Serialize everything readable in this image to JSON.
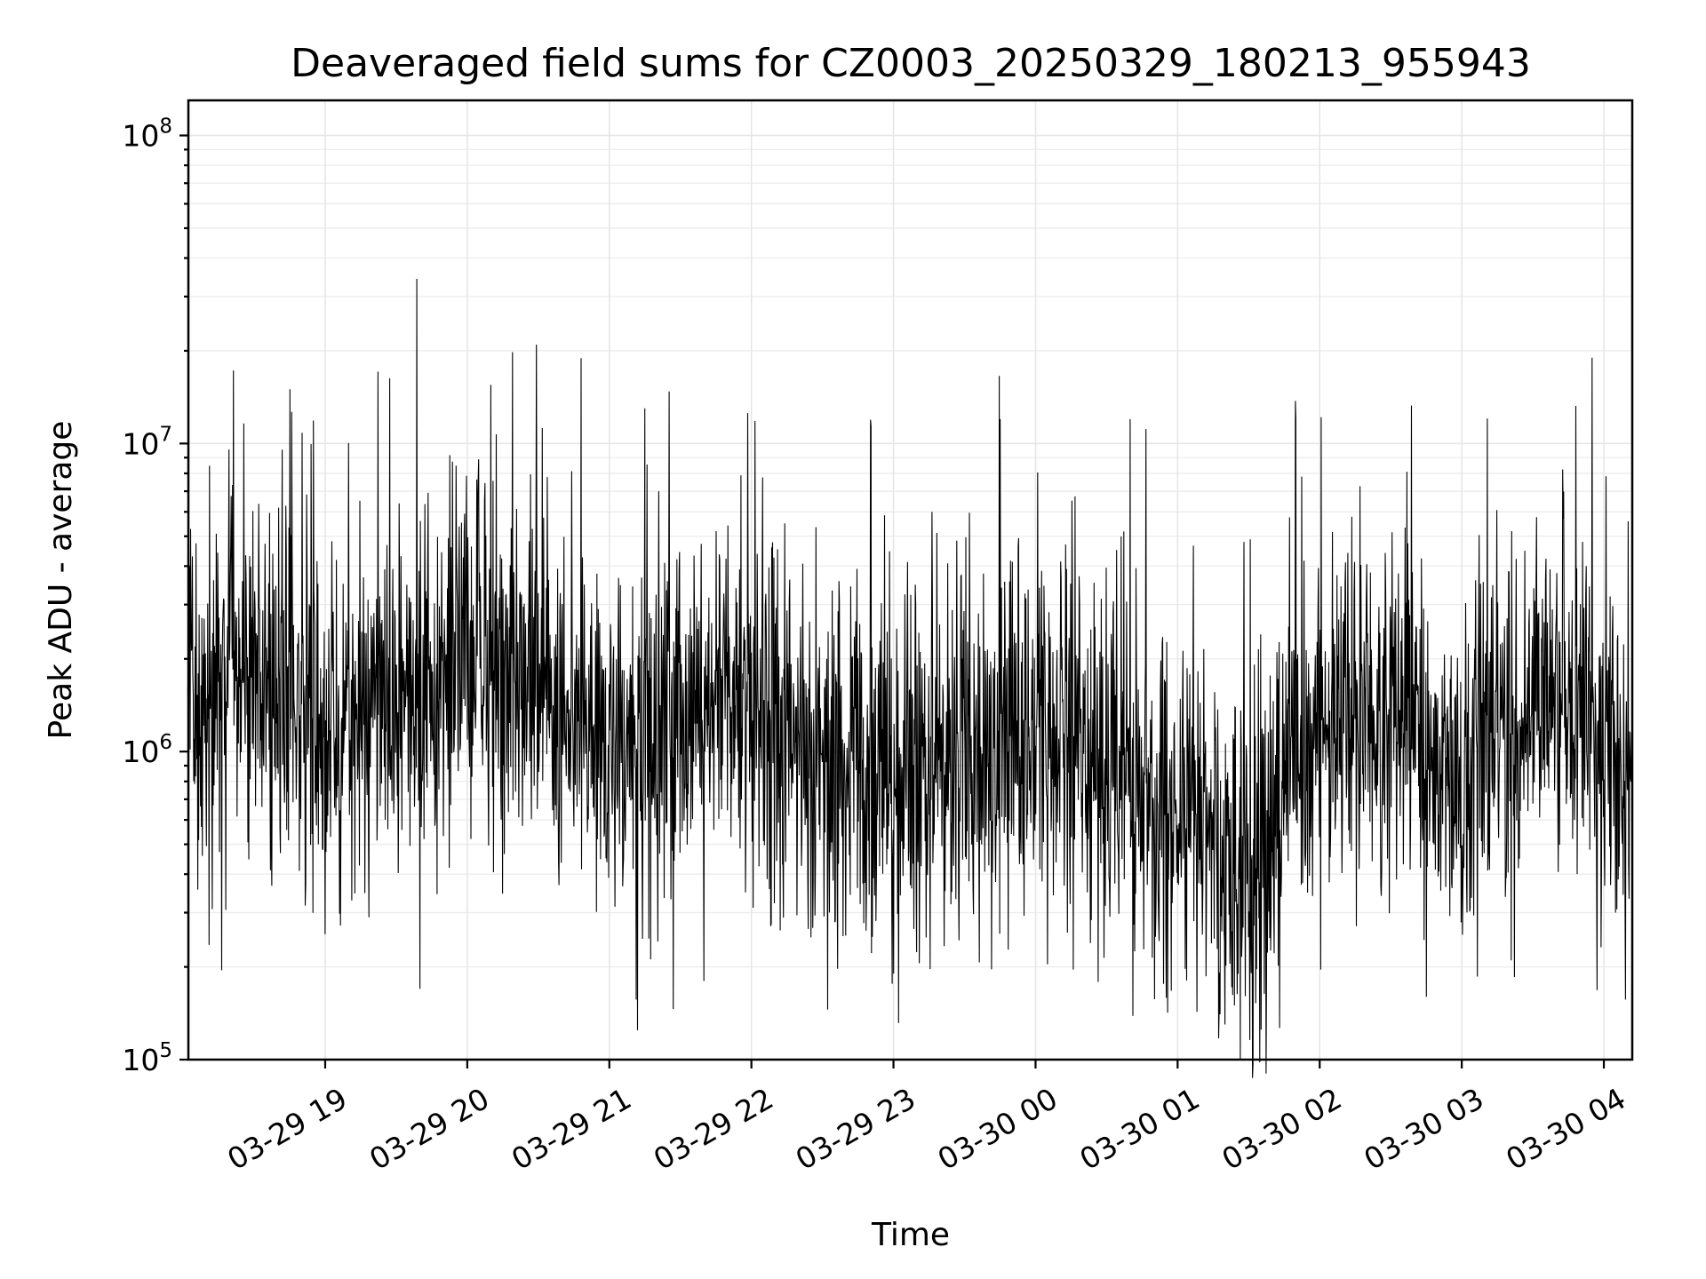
{
  "chart_data": {
    "type": "line",
    "title": "Deaveraged field sums for CZ0003_20250329_180213_955943",
    "xlabel": "Time",
    "ylabel": "Peak ADU - average",
    "x_range": [
      "2025-03-29 18:02:13",
      "2025-03-30 04:12:00"
    ],
    "ylim": [
      100000,
      130000000
    ],
    "y_scale": "log",
    "grid": true,
    "legend": "none",
    "line_color": "#000000",
    "x_ticks": [
      {
        "label": "03-29 19",
        "time": "2025-03-29 19:00"
      },
      {
        "label": "03-29 20",
        "time": "2025-03-29 20:00"
      },
      {
        "label": "03-29 21",
        "time": "2025-03-29 21:00"
      },
      {
        "label": "03-29 22",
        "time": "2025-03-29 22:00"
      },
      {
        "label": "03-29 23",
        "time": "2025-03-29 23:00"
      },
      {
        "label": "03-30 00",
        "time": "2025-03-30 00:00"
      },
      {
        "label": "03-30 01",
        "time": "2025-03-30 01:00"
      },
      {
        "label": "03-30 02",
        "time": "2025-03-30 02:00"
      },
      {
        "label": "03-30 03",
        "time": "2025-03-30 03:00"
      },
      {
        "label": "03-30 04",
        "time": "2025-03-30 04:00"
      }
    ],
    "y_ticks": [
      {
        "base": "10",
        "exp": "5",
        "value": 100000
      },
      {
        "base": "10",
        "exp": "6",
        "value": 1000000
      },
      {
        "base": "10",
        "exp": "7",
        "value": 10000000
      },
      {
        "base": "10",
        "exp": "8",
        "value": 100000000
      }
    ],
    "series": [
      {
        "name": "",
        "data_times": [
          "2025-03-29 18:02",
          "2025-03-29 18:30",
          "2025-03-29 19:00",
          "2025-03-29 19:30",
          "2025-03-29 20:00",
          "2025-03-29 20:30",
          "2025-03-29 21:00",
          "2025-03-29 21:30",
          "2025-03-29 22:00",
          "2025-03-29 22:30",
          "2025-03-29 23:00",
          "2025-03-29 23:30",
          "2025-03-30 00:00",
          "2025-03-30 00:30",
          "2025-03-30 01:00",
          "2025-03-30 01:30",
          "2025-03-30 02:00",
          "2025-03-30 02:30",
          "2025-03-30 03:00",
          "2025-03-30 03:30",
          "2025-03-30 04:00",
          "2025-03-30 04:12"
        ],
        "data_values": [
          1500000,
          2000000,
          1200000,
          1500000,
          2000000,
          2000000,
          900000,
          1300000,
          1300000,
          800000,
          900000,
          900000,
          1200000,
          800000,
          600000,
          400000,
          1200000,
          1300000,
          900000,
          1300000,
          1400000,
          600000
        ],
        "peaks": [
          {
            "time": "2025-03-29 18:45",
            "value": 15000000
          },
          {
            "time": "2025-03-29 20:10",
            "value": 15500000
          },
          {
            "time": "2025-03-29 21:15",
            "value": 13000000
          },
          {
            "time": "2025-03-29 23:45",
            "value": 12000000
          },
          {
            "time": "2025-03-30 00:40",
            "value": 12000000
          },
          {
            "time": "2025-03-30 01:50",
            "value": 12000000
          },
          {
            "time": "2025-03-30 03:55",
            "value": 19000000
          }
        ],
        "troughs": [
          {
            "time": "2025-03-29 19:40",
            "value": 170000
          },
          {
            "time": "2025-03-29 21:40",
            "value": 180000
          },
          {
            "time": "2025-03-29 23:00",
            "value": 190000
          },
          {
            "time": "2025-03-30 01:20",
            "value": 130000
          },
          {
            "time": "2025-03-30 02:45",
            "value": 160000
          },
          {
            "time": "2025-03-30 04:05",
            "value": 300000
          }
        ]
      }
    ]
  }
}
